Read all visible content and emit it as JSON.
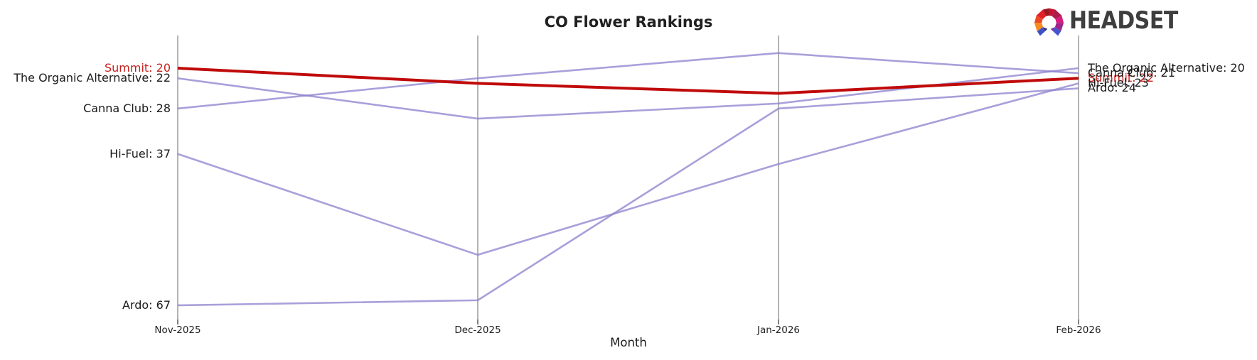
{
  "logo": {
    "text": "HEADSET",
    "icon": "headset-arch-icon"
  },
  "colors": {
    "highlight_line": "#c00a0a",
    "series_line": "#8b80cd",
    "axis_line": "#ababab",
    "axis_tick": "#2a2a2a",
    "highlight_label": "#c8201d",
    "text": "#1a1a1a",
    "logo_text": "#3e3e3e"
  },
  "chart_data": {
    "type": "line",
    "subtype": "bump_ranking_parallel_axes",
    "title": "CO Flower Rankings",
    "xlabel": "Month",
    "x": [
      "Nov-2025",
      "Dec-2025",
      "Jan-2026",
      "Feb-2026"
    ],
    "y_is_rank": true,
    "y_inverted": true,
    "y_range_shown": [
      13,
      70
    ],
    "grid": "vertical-month-axes-only",
    "legend": "inline-labels-at-line-ends",
    "series": [
      {
        "name": "Summit",
        "values": [
          20,
          23,
          25,
          22
        ],
        "highlighted": true
      },
      {
        "name": "The Organic Alternative",
        "values": [
          22,
          30,
          27,
          20
        ],
        "highlighted": false
      },
      {
        "name": "Canna Club",
        "values": [
          28,
          22,
          17,
          21
        ],
        "highlighted": false
      },
      {
        "name": "Hi-Fuel",
        "values": [
          37,
          57,
          39,
          23
        ],
        "highlighted": false
      },
      {
        "name": "Ardo",
        "values": [
          67,
          66,
          28,
          24
        ],
        "highlighted": false
      }
    ],
    "left_labels": [
      {
        "text": "Summit: 20",
        "rank": 20,
        "color": "#c8201d"
      },
      {
        "text": "The Organic Alternative: 22",
        "rank": 22,
        "color": "#1a1a1a"
      },
      {
        "text": "Canna Club: 28",
        "rank": 28,
        "color": "#1a1a1a"
      },
      {
        "text": "Hi-Fuel: 37",
        "rank": 37,
        "color": "#1a1a1a"
      },
      {
        "text": "Ardo: 67",
        "rank": 67,
        "color": "#1a1a1a"
      }
    ],
    "right_labels": [
      {
        "text": "Summit: 22",
        "rank": 22,
        "color": "#c8201d"
      },
      {
        "text": "Canna Club: 21",
        "rank": 21,
        "color": "#1a1a1a"
      },
      {
        "text": "Hi-Fuel: 23",
        "rank": 23,
        "color": "#1a1a1a"
      },
      {
        "text": "Ardo: 24",
        "rank": 24,
        "color": "#1a1a1a"
      },
      {
        "text": "The Organic Alternative: 20",
        "rank": 20,
        "color": "#1a1a1a"
      }
    ]
  }
}
